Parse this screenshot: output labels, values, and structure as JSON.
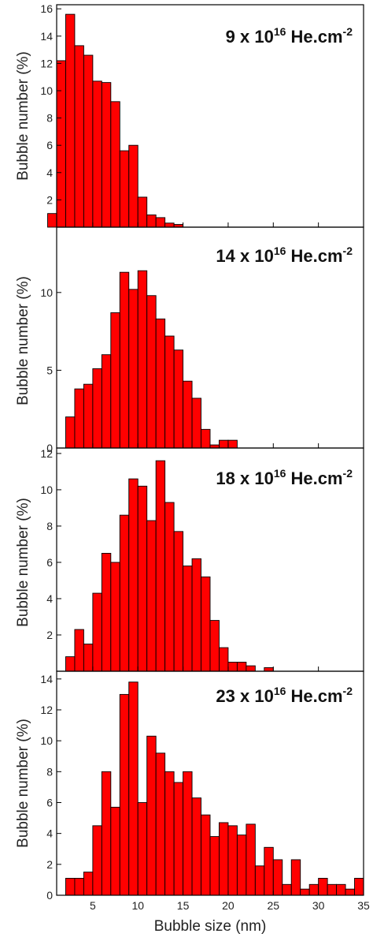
{
  "chart_data": [
    {
      "type": "bar",
      "ylabel": "Bubble number (%)",
      "fluence": {
        "value": "9 x 10",
        "exp": "16",
        "unit": " He.cm",
        "unit_exp": "-2"
      },
      "yticks": [
        2,
        4,
        6,
        8,
        10,
        12,
        14,
        16
      ],
      "ytick_labels": [
        "2",
        "4",
        "6",
        "8",
        "10",
        "12",
        "14",
        "16"
      ],
      "ylim": [
        0,
        16.3
      ],
      "x": [
        0.5,
        1.5,
        2.5,
        3.5,
        4.5,
        5.5,
        6.5,
        7.5,
        8.5,
        9.5,
        10.5,
        11.5,
        12.5,
        13.5,
        14.5
      ],
      "values": [
        1.0,
        12.2,
        15.6,
        13.3,
        12.6,
        10.7,
        10.6,
        9.2,
        5.6,
        6.0,
        2.2,
        0.9,
        0.7,
        0.3,
        0.2
      ]
    },
    {
      "type": "bar",
      "ylabel": "Bubble number (%)",
      "fluence": {
        "value": "14 x 10",
        "exp": "16",
        "unit": " He.cm",
        "unit_exp": "-2"
      },
      "yticks": [
        0,
        5,
        10
      ],
      "ytick_labels": [
        "0",
        "5",
        "10"
      ],
      "ylim": [
        0,
        14.2
      ],
      "x": [
        2.5,
        3.5,
        4.5,
        5.5,
        6.5,
        7.5,
        8.5,
        9.5,
        10.5,
        11.5,
        12.5,
        13.5,
        14.5,
        15.5,
        16.5,
        17.5,
        18.5,
        19.5,
        20.5
      ],
      "values": [
        2.0,
        3.8,
        4.1,
        5.1,
        6.0,
        8.7,
        11.3,
        10.2,
        11.4,
        9.8,
        8.3,
        7.2,
        6.3,
        4.3,
        3.2,
        1.2,
        0.2,
        0.5,
        0.5
      ]
    },
    {
      "type": "bar",
      "ylabel": "Bubble number (%)",
      "fluence": {
        "value": "18 x 10",
        "exp": "16",
        "unit": " He.cm",
        "unit_exp": "-2"
      },
      "yticks": [
        2,
        4,
        6,
        8,
        10,
        12
      ],
      "ytick_labels": [
        "2",
        "4",
        "6",
        "8",
        "10",
        "12"
      ],
      "ylim": [
        0,
        12.3
      ],
      "x": [
        2.5,
        3.5,
        4.5,
        5.5,
        6.5,
        7.5,
        8.5,
        9.5,
        10.5,
        11.5,
        12.5,
        13.5,
        14.5,
        15.5,
        16.5,
        17.5,
        18.5,
        19.5,
        20.5,
        21.5,
        22.5,
        24.5
      ],
      "values": [
        0.8,
        2.3,
        1.5,
        4.3,
        6.5,
        6.0,
        8.6,
        10.6,
        10.2,
        8.3,
        11.6,
        9.3,
        7.7,
        5.8,
        6.2,
        5.2,
        2.8,
        1.3,
        0.5,
        0.5,
        0.3,
        0.2
      ]
    },
    {
      "type": "bar",
      "ylabel": "Bubble number (%)",
      "fluence": {
        "value": "23 x 10",
        "exp": "16",
        "unit": " He.cm",
        "unit_exp": "-2"
      },
      "xlabel": "Bubble size (nm)",
      "yticks": [
        0,
        2,
        4,
        6,
        8,
        10,
        12,
        14
      ],
      "ytick_labels": [
        "0",
        "2",
        "4",
        "6",
        "8",
        "10",
        "12",
        "14"
      ],
      "ylim": [
        0,
        14.5
      ],
      "xticks": [
        5,
        10,
        15,
        20,
        25,
        30,
        35
      ],
      "xtick_labels": [
        "5",
        "10",
        "15",
        "20",
        "25",
        "30",
        "35"
      ],
      "x": [
        2.5,
        3.5,
        4.5,
        5.5,
        6.5,
        7.5,
        8.5,
        9.5,
        10.5,
        11.5,
        12.5,
        13.5,
        14.5,
        15.5,
        16.5,
        17.5,
        18.5,
        19.5,
        20.5,
        21.5,
        22.5,
        23.5,
        24.5,
        25.5,
        26.5,
        27.5,
        28.5,
        29.5,
        30.5,
        31.5,
        32.5,
        33.5,
        34.5
      ],
      "values": [
        1.1,
        1.1,
        1.5,
        4.5,
        8.0,
        5.7,
        13.0,
        13.8,
        6.0,
        10.3,
        9.2,
        8.0,
        7.3,
        8.0,
        6.3,
        5.2,
        3.8,
        4.7,
        4.5,
        3.9,
        4.6,
        1.9,
        3.1,
        2.3,
        0.7,
        2.3,
        0.4,
        0.7,
        1.1,
        0.7,
        0.7,
        0.4,
        1.1
      ]
    }
  ],
  "x_domain": [
    1,
    35
  ],
  "colors": {
    "bar_fill": "#ff0000",
    "bar_stroke": "#000000"
  }
}
